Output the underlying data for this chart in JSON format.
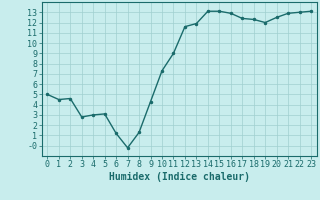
{
  "x": [
    0,
    1,
    2,
    3,
    4,
    5,
    6,
    7,
    8,
    9,
    10,
    11,
    12,
    13,
    14,
    15,
    16,
    17,
    18,
    19,
    20,
    21,
    22,
    23
  ],
  "y": [
    5.0,
    4.5,
    4.6,
    2.8,
    3.0,
    3.1,
    1.2,
    -0.2,
    1.3,
    4.3,
    7.3,
    9.0,
    11.6,
    11.9,
    13.1,
    13.1,
    12.9,
    12.4,
    12.3,
    12.0,
    12.5,
    12.9,
    13.0,
    13.1
  ],
  "line_color": "#1a6b6b",
  "marker": ".",
  "marker_size": 3,
  "bg_color": "#c8eded",
  "grid_color": "#a0d0d0",
  "xlim": [
    -0.5,
    23.5
  ],
  "ylim": [
    -1,
    14
  ],
  "yticks": [
    0,
    1,
    2,
    3,
    4,
    5,
    6,
    7,
    8,
    9,
    10,
    11,
    12,
    13
  ],
  "ytick_labels": [
    "-0",
    "1",
    "2",
    "3",
    "4",
    "5",
    "6",
    "7",
    "8",
    "9",
    "10",
    "11",
    "12",
    "13"
  ],
  "xticks": [
    0,
    1,
    2,
    3,
    4,
    5,
    6,
    7,
    8,
    9,
    10,
    11,
    12,
    13,
    14,
    15,
    16,
    17,
    18,
    19,
    20,
    21,
    22,
    23
  ],
  "xlabel": "Humidex (Indice chaleur)",
  "xlabel_fontsize": 7,
  "tick_fontsize": 6,
  "line_width": 1.0
}
